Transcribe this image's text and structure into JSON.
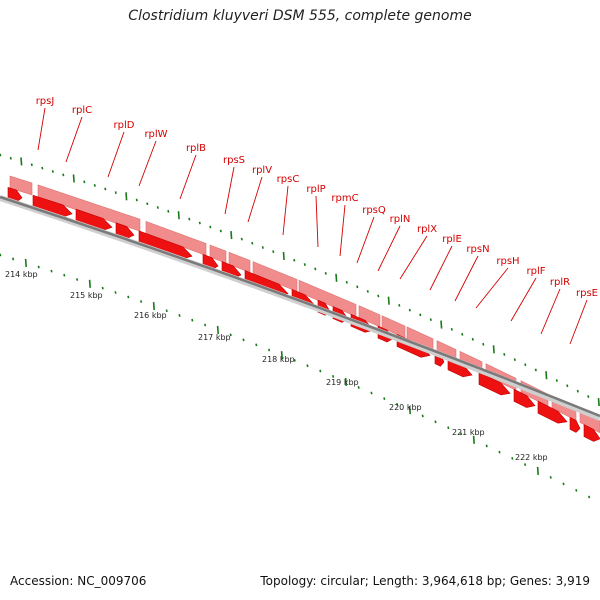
{
  "title": "Clostridium kluyveri DSM 555, complete genome",
  "accession": "Accession: NC_009706",
  "summary": "Topology: circular; Length: 3,964,618 bp; Genes: 3,919",
  "scale_labels": [
    "214 kbp",
    "215 kbp",
    "216 kbp",
    "217 kbp",
    "218 kbp",
    "219 kbp",
    "220 kbp",
    "221 kbp",
    "222 kbp"
  ],
  "genes": [
    {
      "name": "rpsJ"
    },
    {
      "name": "rplC"
    },
    {
      "name": "rplD"
    },
    {
      "name": "rplW"
    },
    {
      "name": "rplB"
    },
    {
      "name": "rpsS"
    },
    {
      "name": "rplV"
    },
    {
      "name": "rpsC"
    },
    {
      "name": "rplP"
    },
    {
      "name": "rpmC"
    },
    {
      "name": "rpsQ"
    },
    {
      "name": "rplN"
    },
    {
      "name": "rplX"
    },
    {
      "name": "rplE"
    },
    {
      "name": "rpsN"
    },
    {
      "name": "rpsH"
    },
    {
      "name": "rplF"
    },
    {
      "name": "rplR"
    },
    {
      "name": "rpsE"
    }
  ],
  "colors": {
    "gene": "#ee1111",
    "gene_pale": "#f08c8c",
    "label": "#d40000",
    "tick": "#1a7a1a",
    "backbone": "#7a7a7a"
  }
}
